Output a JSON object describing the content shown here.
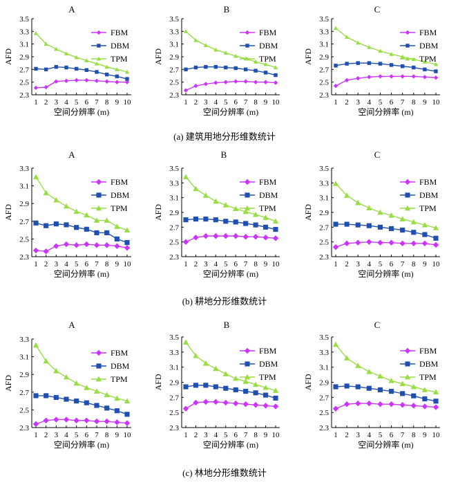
{
  "figure": {
    "captions": [
      "(a) 建筑用地分形维数统计",
      "(b) 耕地分形维数统计",
      "(c) 林地分形维数统计"
    ],
    "colors": {
      "FBM": "#cc33ff",
      "DBM": "#1f4fb0",
      "TPM": "#99dd44"
    }
  },
  "chart_data": [
    {
      "type": "line",
      "group": "a",
      "title": "A",
      "xlabel": "空间分辨率 (m)",
      "ylabel": "AFD",
      "x": [
        1,
        2,
        3,
        4,
        5,
        6,
        7,
        8,
        9,
        10
      ],
      "ylim": [
        2.3,
        3.5
      ],
      "yticks": [
        "2.3",
        "2.5",
        "2.7",
        "2.9",
        "3.1",
        "3.3",
        "3.5"
      ],
      "legend": "top-right",
      "series": [
        {
          "name": "FBM",
          "values": [
            2.41,
            2.42,
            2.51,
            2.52,
            2.53,
            2.53,
            2.52,
            2.51,
            2.5,
            2.5
          ]
        },
        {
          "name": "DBM",
          "values": [
            2.71,
            2.7,
            2.74,
            2.73,
            2.71,
            2.69,
            2.66,
            2.62,
            2.59,
            2.55
          ]
        },
        {
          "name": "TPM",
          "values": [
            3.27,
            3.1,
            3.02,
            2.95,
            2.89,
            2.84,
            2.79,
            2.74,
            2.7,
            2.66
          ]
        }
      ]
    },
    {
      "type": "line",
      "group": "a",
      "title": "B",
      "xlabel": "空间分辨率 (m)",
      "ylabel": "AFD",
      "x": [
        1,
        2,
        3,
        4,
        5,
        6,
        7,
        8,
        9,
        10
      ],
      "ylim": [
        2.3,
        3.5
      ],
      "yticks": [
        "2.3",
        "2.5",
        "2.7",
        "2.9",
        "3.1",
        "3.3",
        "3.5"
      ],
      "legend": "top-right",
      "series": [
        {
          "name": "FBM",
          "values": [
            2.37,
            2.44,
            2.47,
            2.49,
            2.5,
            2.51,
            2.51,
            2.5,
            2.5,
            2.49
          ]
        },
        {
          "name": "DBM",
          "values": [
            2.7,
            2.73,
            2.74,
            2.74,
            2.73,
            2.72,
            2.7,
            2.68,
            2.65,
            2.61
          ]
        },
        {
          "name": "TPM",
          "values": [
            3.3,
            3.16,
            3.08,
            3.01,
            2.96,
            2.91,
            2.87,
            2.82,
            2.78,
            2.73
          ]
        }
      ]
    },
    {
      "type": "line",
      "group": "a",
      "title": "C",
      "xlabel": "空间分辨率 (m)",
      "ylabel": "AFD",
      "x": [
        1,
        2,
        3,
        4,
        5,
        6,
        7,
        8,
        9,
        10
      ],
      "ylim": [
        2.3,
        3.5
      ],
      "yticks": [
        "2.3",
        "2.5",
        "2.7",
        "2.9",
        "3.1",
        "3.3",
        "3.5"
      ],
      "legend": "top-right",
      "series": [
        {
          "name": "FBM",
          "values": [
            2.44,
            2.53,
            2.56,
            2.58,
            2.59,
            2.59,
            2.59,
            2.59,
            2.58,
            2.57
          ]
        },
        {
          "name": "DBM",
          "values": [
            2.76,
            2.79,
            2.8,
            2.8,
            2.79,
            2.77,
            2.75,
            2.73,
            2.7,
            2.67
          ]
        },
        {
          "name": "TPM",
          "values": [
            3.35,
            3.21,
            3.12,
            3.05,
            2.99,
            2.94,
            2.9,
            2.86,
            2.82,
            2.78
          ]
        }
      ]
    },
    {
      "type": "line",
      "group": "b",
      "title": "A",
      "xlabel": "空间分辨率 (m)",
      "ylabel": "AFD",
      "x": [
        1,
        2,
        3,
        4,
        5,
        6,
        7,
        8,
        9,
        10
      ],
      "ylim": [
        2.3,
        3.3
      ],
      "yticks": [
        "2.3",
        "2.5",
        "2.7",
        "2.9",
        "3.1",
        "3.3"
      ],
      "legend": "top-right",
      "series": [
        {
          "name": "FBM",
          "values": [
            2.37,
            2.36,
            2.42,
            2.44,
            2.43,
            2.44,
            2.43,
            2.43,
            2.42,
            2.4
          ]
        },
        {
          "name": "DBM",
          "values": [
            2.68,
            2.65,
            2.67,
            2.66,
            2.63,
            2.61,
            2.57,
            2.57,
            2.5,
            2.46
          ]
        },
        {
          "name": "TPM",
          "values": [
            3.2,
            3.02,
            2.94,
            2.87,
            2.81,
            2.77,
            2.71,
            2.71,
            2.64,
            2.6
          ]
        }
      ]
    },
    {
      "type": "line",
      "group": "b",
      "title": "B",
      "xlabel": "空间分辨率 (m)",
      "ylabel": "AFD",
      "x": [
        1,
        2,
        3,
        4,
        5,
        6,
        7,
        8,
        9,
        10
      ],
      "ylim": [
        2.3,
        3.5
      ],
      "yticks": [
        "2.3",
        "2.5",
        "2.7",
        "2.9",
        "3.1",
        "3.3",
        "3.5"
      ],
      "legend": "top-right",
      "series": [
        {
          "name": "FBM",
          "values": [
            2.5,
            2.56,
            2.58,
            2.58,
            2.58,
            2.58,
            2.57,
            2.57,
            2.56,
            2.55
          ]
        },
        {
          "name": "DBM",
          "values": [
            2.8,
            2.81,
            2.81,
            2.8,
            2.78,
            2.77,
            2.75,
            2.73,
            2.7,
            2.67
          ]
        },
        {
          "name": "TPM",
          "values": [
            3.38,
            3.22,
            3.13,
            3.05,
            3.0,
            2.95,
            2.91,
            2.87,
            2.83,
            2.78
          ]
        }
      ]
    },
    {
      "type": "line",
      "group": "b",
      "title": "C",
      "xlabel": "空间分辨率 (m)",
      "ylabel": "AFD",
      "x": [
        1,
        2,
        3,
        4,
        5,
        6,
        7,
        8,
        9,
        10
      ],
      "ylim": [
        2.3,
        3.5
      ],
      "yticks": [
        "2.3",
        "2.5",
        "2.7",
        "2.9",
        "3.1",
        "3.3",
        "3.5"
      ],
      "legend": "top-right",
      "series": [
        {
          "name": "FBM",
          "values": [
            2.43,
            2.48,
            2.49,
            2.5,
            2.49,
            2.49,
            2.48,
            2.48,
            2.48,
            2.46
          ]
        },
        {
          "name": "DBM",
          "values": [
            2.74,
            2.74,
            2.73,
            2.72,
            2.7,
            2.68,
            2.66,
            2.63,
            2.6,
            2.55
          ]
        },
        {
          "name": "TPM",
          "values": [
            3.29,
            3.13,
            3.03,
            2.96,
            2.9,
            2.86,
            2.81,
            2.77,
            2.73,
            2.69
          ]
        }
      ]
    },
    {
      "type": "line",
      "group": "c",
      "title": "A",
      "xlabel": "空间分辨率 (m)",
      "ylabel": "AFD",
      "x": [
        1,
        2,
        3,
        4,
        5,
        6,
        7,
        8,
        9,
        10
      ],
      "ylim": [
        2.3,
        3.3
      ],
      "yticks": [
        "2.3",
        "2.5",
        "2.7",
        "2.9",
        "3.1",
        "3.3"
      ],
      "legend": "top-right",
      "series": [
        {
          "name": "FBM",
          "values": [
            2.34,
            2.38,
            2.39,
            2.39,
            2.38,
            2.38,
            2.37,
            2.37,
            2.36,
            2.35
          ]
        },
        {
          "name": "DBM",
          "values": [
            2.66,
            2.66,
            2.64,
            2.62,
            2.6,
            2.58,
            2.55,
            2.52,
            2.49,
            2.45
          ]
        },
        {
          "name": "TPM",
          "values": [
            3.23,
            3.05,
            2.94,
            2.87,
            2.8,
            2.75,
            2.71,
            2.67,
            2.63,
            2.6
          ]
        }
      ]
    },
    {
      "type": "line",
      "group": "c",
      "title": "B",
      "xlabel": "空间分辨率 (m)",
      "ylabel": "AFD",
      "x": [
        1,
        2,
        3,
        4,
        5,
        6,
        7,
        8,
        9,
        10
      ],
      "ylim": [
        2.3,
        3.5
      ],
      "yticks": [
        "2.3",
        "2.5",
        "2.7",
        "2.9",
        "3.1",
        "3.3",
        "3.5"
      ],
      "legend": "top-right",
      "series": [
        {
          "name": "FBM",
          "values": [
            2.55,
            2.63,
            2.64,
            2.64,
            2.63,
            2.62,
            2.61,
            2.6,
            2.59,
            2.58
          ]
        },
        {
          "name": "DBM",
          "values": [
            2.84,
            2.86,
            2.86,
            2.84,
            2.82,
            2.8,
            2.78,
            2.76,
            2.73,
            2.69
          ]
        },
        {
          "name": "TPM",
          "values": [
            3.43,
            3.25,
            3.15,
            3.08,
            3.01,
            2.95,
            2.91,
            2.87,
            2.83,
            2.79
          ]
        }
      ]
    },
    {
      "type": "line",
      "group": "c",
      "title": "C",
      "xlabel": "空间分辨率 (m)",
      "ylabel": "AFD",
      "x": [
        1,
        2,
        3,
        4,
        5,
        6,
        7,
        8,
        9,
        10
      ],
      "ylim": [
        2.3,
        3.5
      ],
      "yticks": [
        "2.3",
        "2.5",
        "2.7",
        "2.9",
        "3.1",
        "3.3",
        "3.5"
      ],
      "legend": "top-right",
      "series": [
        {
          "name": "FBM",
          "values": [
            2.55,
            2.61,
            2.62,
            2.62,
            2.61,
            2.61,
            2.6,
            2.59,
            2.58,
            2.57
          ]
        },
        {
          "name": "DBM",
          "values": [
            2.84,
            2.85,
            2.84,
            2.82,
            2.8,
            2.78,
            2.75,
            2.72,
            2.68,
            2.65
          ]
        },
        {
          "name": "TPM",
          "values": [
            3.4,
            3.22,
            3.12,
            3.04,
            2.98,
            2.92,
            2.88,
            2.84,
            2.8,
            2.77
          ]
        }
      ]
    }
  ]
}
